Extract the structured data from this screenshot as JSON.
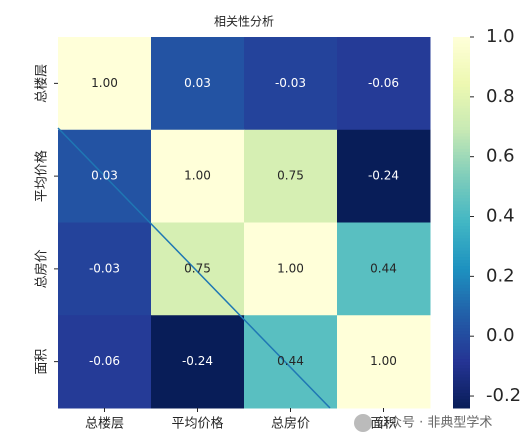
{
  "chart_data": {
    "type": "heatmap",
    "title": "相关性分析",
    "x_categories": [
      "总楼层",
      "平均价格",
      "总房价",
      "面积"
    ],
    "y_categories": [
      "总楼层",
      "平均价格",
      "总房价",
      "面积"
    ],
    "values": [
      [
        1.0,
        0.03,
        -0.03,
        -0.06
      ],
      [
        0.03,
        1.0,
        0.75,
        -0.24
      ],
      [
        -0.03,
        0.75,
        1.0,
        0.44
      ],
      [
        -0.06,
        -0.24,
        0.44,
        1.0
      ]
    ],
    "value_labels": [
      [
        "1.00",
        "0.03",
        "-0.03",
        "-0.06"
      ],
      [
        "0.03",
        "1.00",
        "0.75",
        "-0.24"
      ],
      [
        "-0.03",
        "0.75",
        "1.00",
        "0.44"
      ],
      [
        "-0.06",
        "-0.24",
        "0.44",
        "1.00"
      ]
    ],
    "colormap": [
      "#ffffd9",
      "#edf8b1",
      "#c7e9b4",
      "#7fcdbb",
      "#41b6c4",
      "#1d91c0",
      "#225ea8",
      "#253494",
      "#081d58"
    ],
    "zlim": [
      -0.24,
      1.0
    ],
    "zticks": [
      {
        "value": 1.0,
        "label": "1.0"
      },
      0.8,
      0.6,
      0.4,
      0.2,
      {
        "value": 0,
        "label": "0.0"
      },
      -0.2
    ],
    "watermark": "公众号 · 非典型学术"
  }
}
